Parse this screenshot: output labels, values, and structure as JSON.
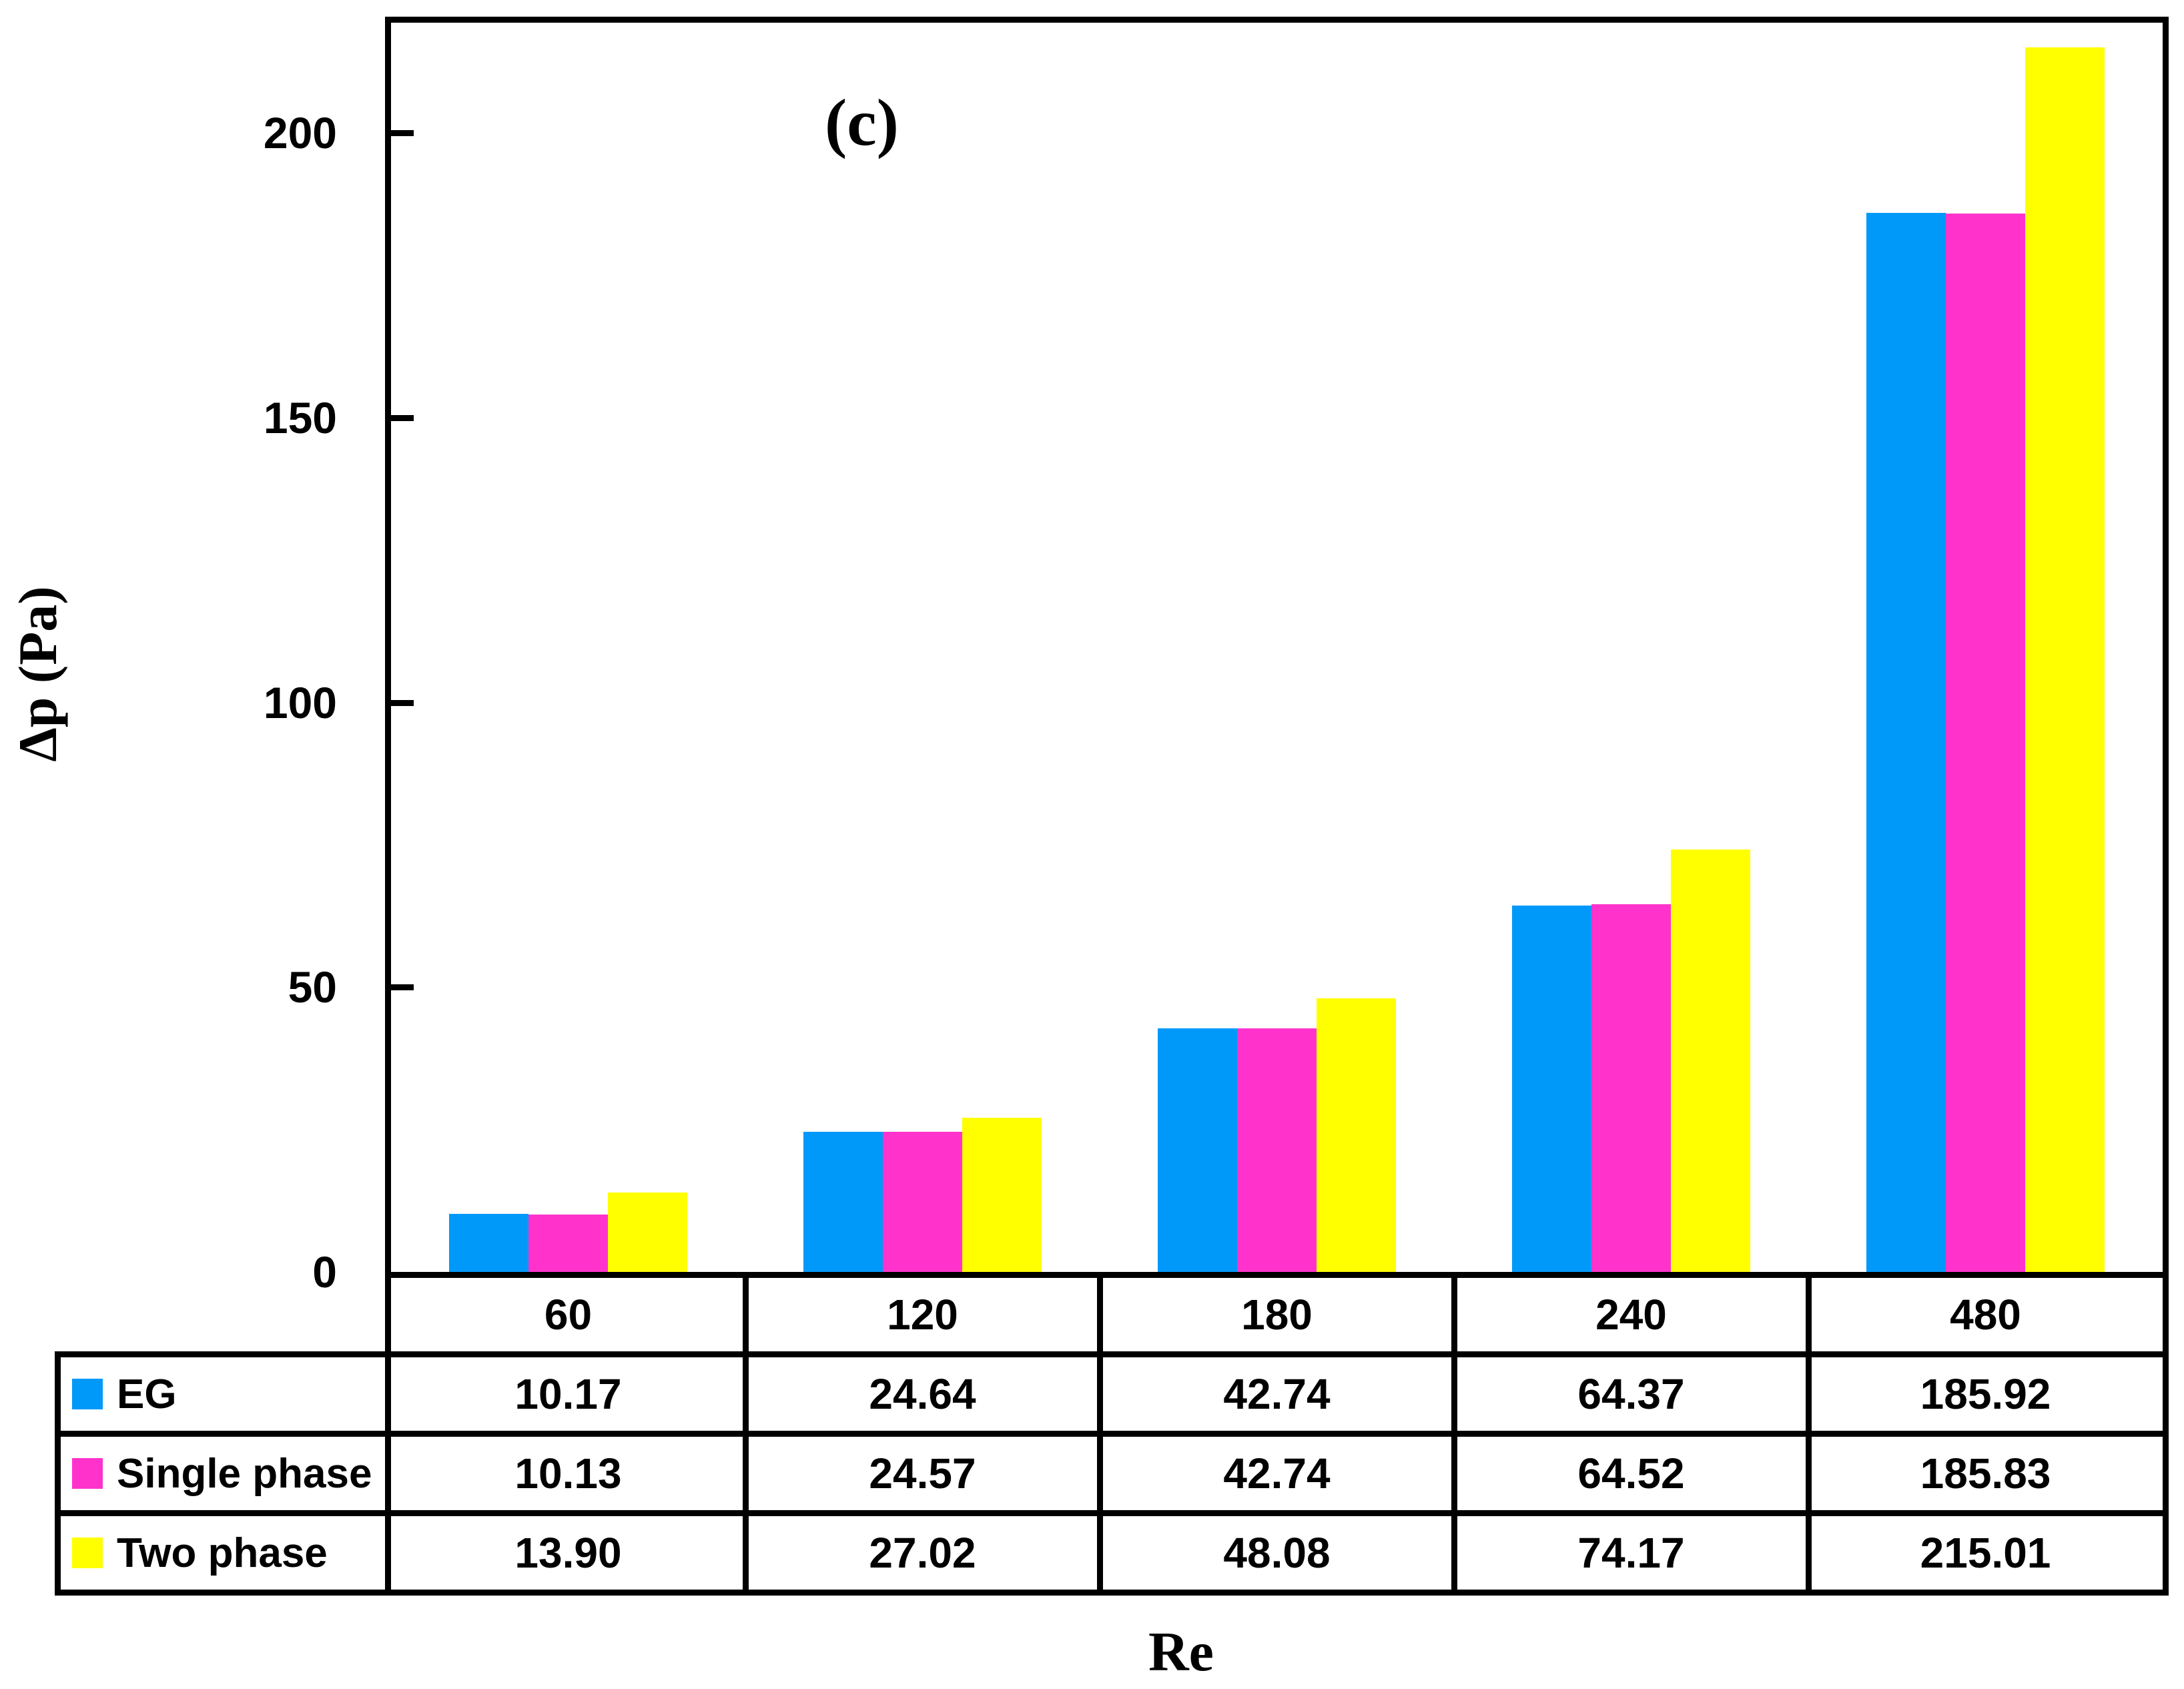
{
  "figure": {
    "panel_label": "(c)",
    "y_axis_title": "Δp (Pa)",
    "x_axis_title": "Re"
  },
  "chart_data": {
    "type": "bar",
    "title": "(c)",
    "xlabel": "Re",
    "ylabel": "Δp (Pa)",
    "categories": [
      "60",
      "120",
      "180",
      "240",
      "480"
    ],
    "series": [
      {
        "name": "EG",
        "color": "#0099FA",
        "values": [
          10.17,
          24.64,
          42.74,
          64.37,
          185.92
        ]
      },
      {
        "name": "Single phase",
        "color": "#FF33CC",
        "values": [
          10.13,
          24.57,
          42.74,
          64.52,
          185.83
        ]
      },
      {
        "name": "Two phase",
        "color": "#FFFF00",
        "values": [
          13.9,
          27.02,
          48.08,
          74.17,
          215.01
        ]
      }
    ],
    "y_ticks": [
      0,
      50,
      100,
      150,
      200
    ],
    "y_tick_labels": [
      "0",
      "50",
      "100",
      "150",
      "200"
    ],
    "ylim": [
      0,
      220
    ],
    "grid": false,
    "legend_position": "table-left-column",
    "data_table_shown": true,
    "value_decimals": 2,
    "axis_color": "#000000",
    "background_color": "#FFFFFF"
  }
}
